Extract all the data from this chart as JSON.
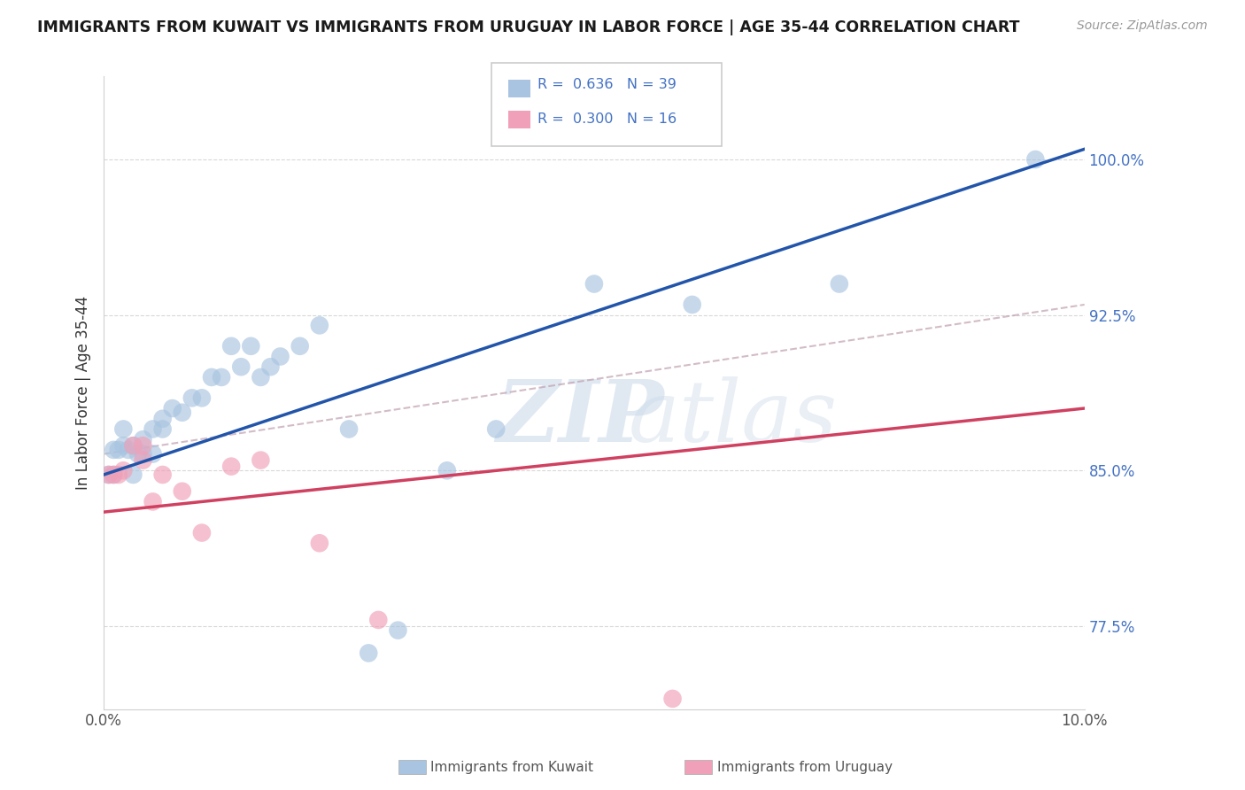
{
  "title": "IMMIGRANTS FROM KUWAIT VS IMMIGRANTS FROM URUGUAY IN LABOR FORCE | AGE 35-44 CORRELATION CHART",
  "source": "Source: ZipAtlas.com",
  "ylabel": "In Labor Force | Age 35-44",
  "xlim": [
    0.0,
    0.1
  ],
  "ylim": [
    0.735,
    1.04
  ],
  "xticks": [
    0.0,
    0.02,
    0.04,
    0.06,
    0.08,
    0.1
  ],
  "xticklabels": [
    "0.0%",
    "",
    "",
    "",
    "",
    "10.0%"
  ],
  "ytick_positions": [
    0.775,
    0.85,
    0.925,
    1.0
  ],
  "ytick_labels": [
    "77.5%",
    "85.0%",
    "92.5%",
    "100.0%"
  ],
  "kuwait_R": 0.636,
  "kuwait_N": 39,
  "uruguay_R": 0.3,
  "uruguay_N": 16,
  "kuwait_color": "#a8c4e0",
  "uruguay_color": "#f0a0b8",
  "kuwait_line_color": "#2255aa",
  "uruguay_line_color": "#d04060",
  "gray_line_color": "#c0a0b0",
  "kuwait_x": [
    0.0005,
    0.001,
    0.001,
    0.0015,
    0.002,
    0.002,
    0.0025,
    0.003,
    0.003,
    0.0035,
    0.004,
    0.004,
    0.005,
    0.005,
    0.006,
    0.006,
    0.007,
    0.008,
    0.009,
    0.01,
    0.011,
    0.012,
    0.013,
    0.014,
    0.015,
    0.016,
    0.017,
    0.018,
    0.02,
    0.022,
    0.025,
    0.027,
    0.03,
    0.035,
    0.04,
    0.05,
    0.06,
    0.075,
    0.095
  ],
  "kuwait_y": [
    0.848,
    0.848,
    0.86,
    0.86,
    0.87,
    0.862,
    0.86,
    0.862,
    0.848,
    0.858,
    0.858,
    0.865,
    0.858,
    0.87,
    0.87,
    0.875,
    0.88,
    0.878,
    0.885,
    0.885,
    0.895,
    0.895,
    0.91,
    0.9,
    0.91,
    0.895,
    0.9,
    0.905,
    0.91,
    0.92,
    0.87,
    0.762,
    0.773,
    0.85,
    0.87,
    0.94,
    0.93,
    0.94,
    1.0
  ],
  "uruguay_x": [
    0.0005,
    0.001,
    0.0015,
    0.002,
    0.003,
    0.004,
    0.004,
    0.005,
    0.006,
    0.008,
    0.01,
    0.013,
    0.016,
    0.022,
    0.028,
    0.058
  ],
  "uruguay_y": [
    0.848,
    0.848,
    0.848,
    0.85,
    0.862,
    0.855,
    0.862,
    0.835,
    0.848,
    0.84,
    0.82,
    0.852,
    0.855,
    0.815,
    0.778,
    0.74
  ],
  "kuwait_line_x": [
    0.0,
    0.1
  ],
  "kuwait_line_y": [
    0.848,
    1.005
  ],
  "uruguay_line_x": [
    0.0,
    0.1
  ],
  "uruguay_line_y": [
    0.83,
    0.88
  ],
  "gray_line_x": [
    0.0,
    0.1
  ],
  "gray_line_y": [
    0.858,
    0.93
  ],
  "watermark_zip": "ZIP",
  "watermark_atlas": "atlas",
  "background_color": "#ffffff",
  "grid_color": "#d8d8d8"
}
